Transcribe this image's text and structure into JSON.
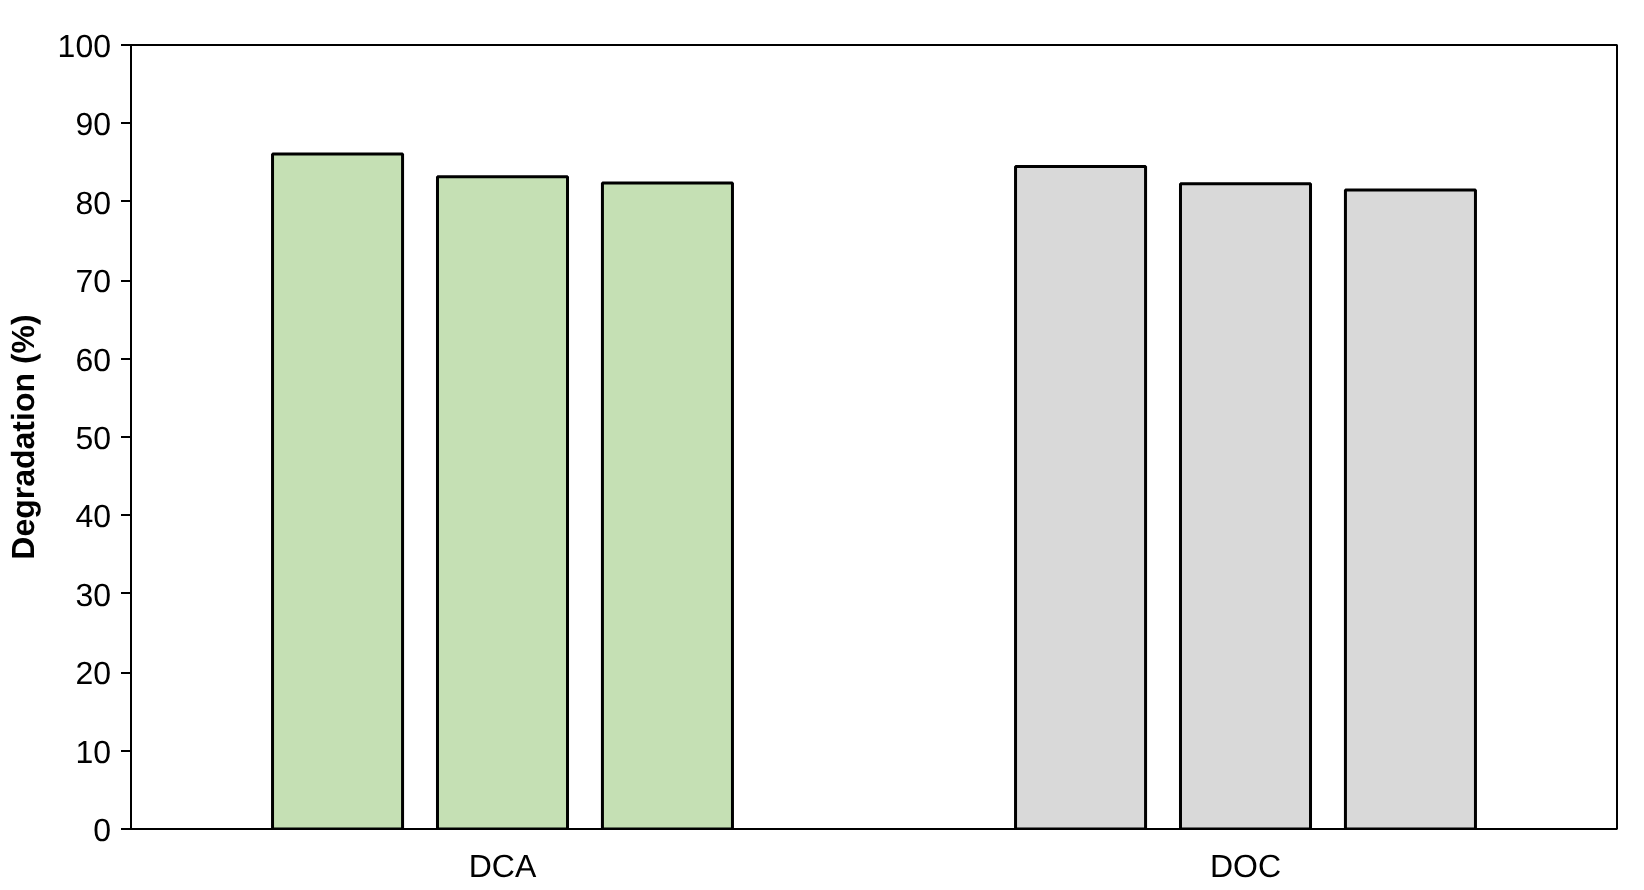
{
  "chart_data": {
    "type": "bar",
    "ylabel": "Degradation (%)",
    "categories": [
      "DCA",
      "DOC"
    ],
    "series": [
      {
        "colors": [
          "#c5e0b4",
          "#d9d9d9"
        ],
        "values": [
          86.1,
          84.5
        ]
      },
      {
        "colors": [
          "#c5e0b4",
          "#d9d9d9"
        ],
        "values": [
          83.2,
          82.3
        ]
      },
      {
        "colors": [
          "#c5e0b4",
          "#d9d9d9"
        ],
        "values": [
          82.4,
          81.5
        ]
      }
    ],
    "ylim": [
      0,
      100
    ],
    "yticks": [
      0,
      10,
      20,
      30,
      40,
      50,
      60,
      70,
      80,
      90,
      100
    ],
    "grid": false
  }
}
